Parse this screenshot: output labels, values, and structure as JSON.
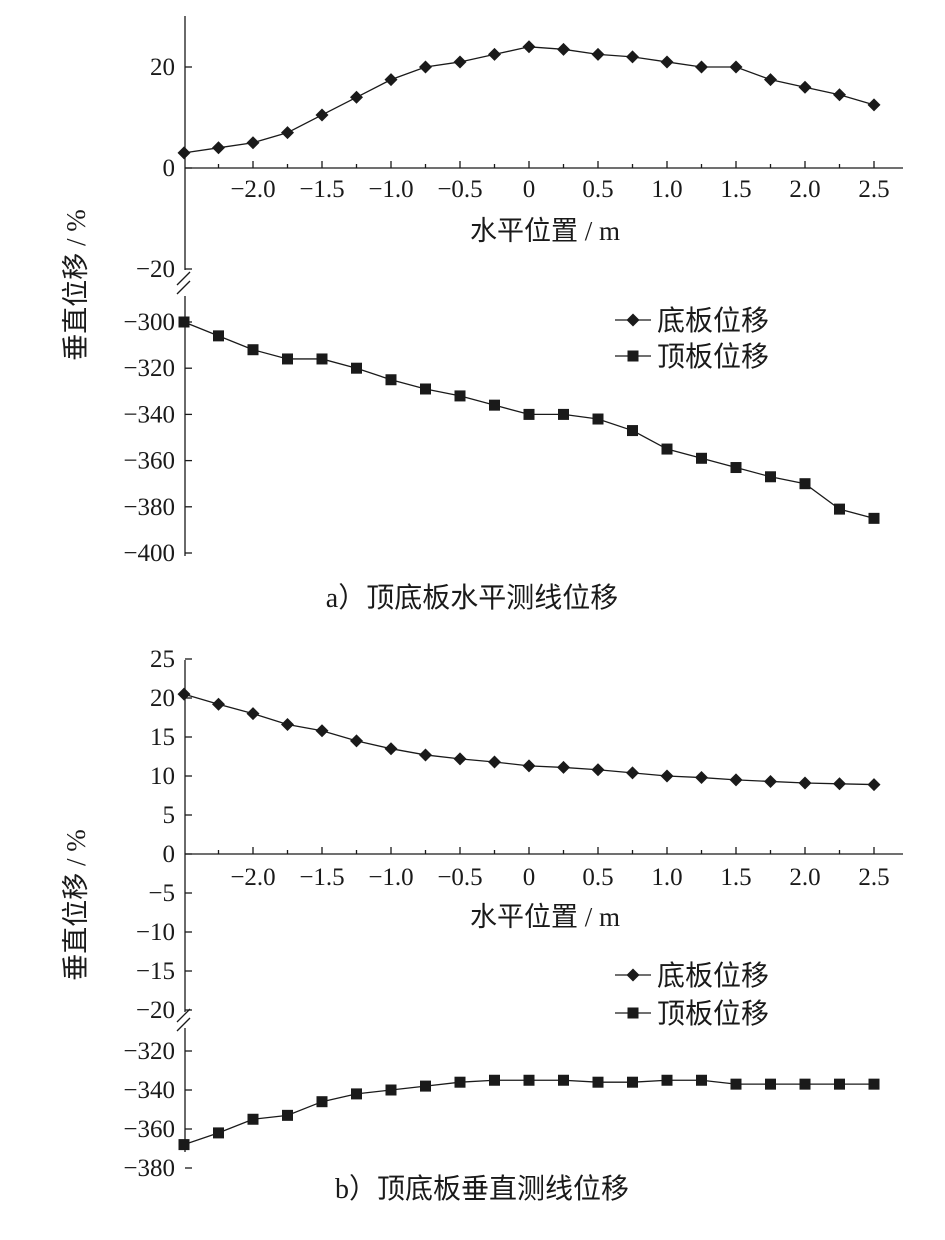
{
  "chart_data": [
    {
      "type": "line",
      "caption": "a）顶底板水平测线位移",
      "xlabel": "水平位置 / m",
      "ylabel": "垂直位移 / %",
      "xlim": [
        -2.5,
        2.5
      ],
      "x_ticks": [
        -2.0,
        -1.5,
        -1.0,
        -0.5,
        0,
        0.5,
        1.0,
        1.5,
        2.0,
        2.5
      ],
      "x_tick_labels": [
        "−2.0",
        "−1.5",
        "−1.0",
        "−0.5",
        "0",
        "0.5",
        "1.0",
        "1.5",
        "2.0",
        "2.5"
      ],
      "y_break": true,
      "y_upper_ticks": [
        -20,
        0,
        20
      ],
      "y_upper_tick_labels": [
        "−20",
        "0",
        "20"
      ],
      "y_lower_ticks": [
        -300,
        -320,
        -340,
        -360,
        -380,
        -400
      ],
      "y_lower_tick_labels": [
        "−300",
        "−320",
        "−340",
        "−360",
        "−380",
        "−400"
      ],
      "x": [
        -2.5,
        -2.25,
        -2.0,
        -1.75,
        -1.5,
        -1.25,
        -1.0,
        -0.75,
        -0.5,
        -0.25,
        0,
        0.25,
        0.5,
        0.75,
        1.0,
        1.25,
        1.5,
        1.75,
        2.0,
        2.25,
        2.5
      ],
      "series": [
        {
          "name": "底板位移",
          "marker": "diamond",
          "values": [
            3,
            4,
            5,
            7,
            10.5,
            14,
            17.5,
            20,
            21,
            22.5,
            24,
            23.5,
            22.5,
            22,
            21,
            20,
            20,
            17.5,
            16,
            14.5,
            12.5
          ]
        },
        {
          "name": "顶板位移",
          "marker": "square",
          "values": [
            -300,
            -306,
            -312,
            -316,
            -316,
            -320,
            -325,
            -329,
            -332,
            -336,
            -340,
            -340,
            -342,
            -347,
            -355,
            -359,
            -363,
            -367,
            -370,
            -381,
            -385
          ]
        }
      ],
      "legend_position": "right"
    },
    {
      "type": "line",
      "caption": "b）顶底板垂直测线位移",
      "xlabel": "水平位置 / m",
      "ylabel": "垂直位移 / %",
      "xlim": [
        -2.5,
        2.5
      ],
      "x_ticks": [
        -2.0,
        -1.5,
        -1.0,
        -0.5,
        0,
        0.5,
        1.0,
        1.5,
        2.0,
        2.5
      ],
      "x_tick_labels": [
        "−2.0",
        "−1.5",
        "−1.0",
        "−0.5",
        "0",
        "0.5",
        "1.0",
        "1.5",
        "2.0",
        "2.5"
      ],
      "y_break": true,
      "y_upper_ticks": [
        -20,
        -15,
        -10,
        -5,
        0,
        5,
        10,
        15,
        20,
        25
      ],
      "y_upper_tick_labels": [
        "−20",
        "−15",
        "−10",
        "−5",
        "0",
        "5",
        "10",
        "15",
        "20",
        "25"
      ],
      "y_lower_ticks": [
        -320,
        -340,
        -360,
        -380
      ],
      "y_lower_tick_labels": [
        "−320",
        "−340",
        "−360",
        "−380"
      ],
      "x": [
        -2.5,
        -2.25,
        -2.0,
        -1.75,
        -1.5,
        -1.25,
        -1.0,
        -0.75,
        -0.5,
        -0.25,
        0,
        0.25,
        0.5,
        0.75,
        1.0,
        1.25,
        1.5,
        1.75,
        2.0,
        2.25,
        2.5
      ],
      "series": [
        {
          "name": "底板位移",
          "marker": "diamond",
          "values": [
            20.5,
            19.2,
            18,
            16.6,
            15.8,
            14.5,
            13.5,
            12.7,
            12.2,
            11.8,
            11.3,
            11.1,
            10.8,
            10.4,
            10,
            9.8,
            9.5,
            9.3,
            9.1,
            9,
            8.9
          ]
        },
        {
          "name": "顶板位移",
          "marker": "square",
          "values": [
            -368,
            -362,
            -355,
            -353,
            -346,
            -342,
            -340,
            -338,
            -336,
            -335,
            -335,
            -335,
            -336,
            -336,
            -335,
            -335,
            -337,
            -337,
            -337,
            -337,
            -337
          ]
        }
      ],
      "legend_position": "right"
    }
  ]
}
